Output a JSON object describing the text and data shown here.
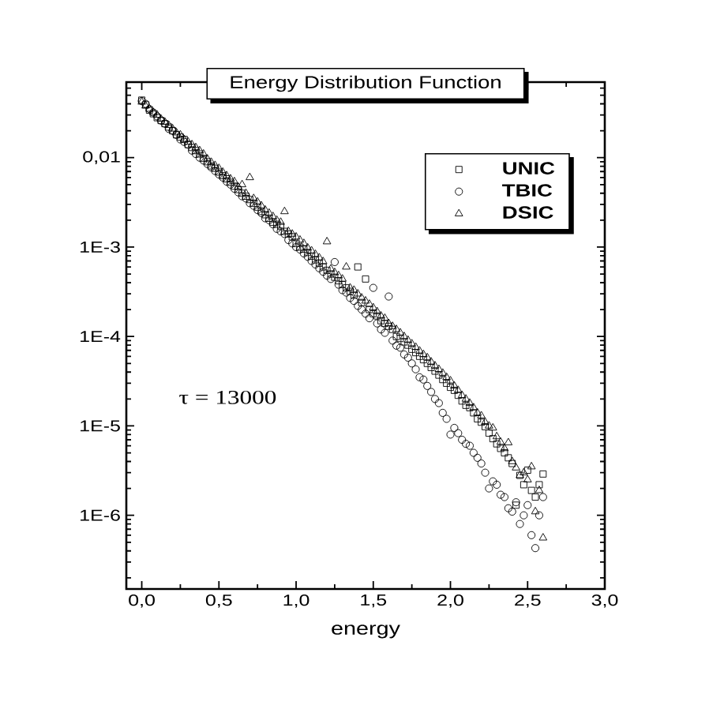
{
  "chart_data": {
    "type": "scatter",
    "title": "Energy Distribution Function",
    "xlabel": "energy",
    "annotations": [
      "τ = 13000"
    ],
    "log": "y",
    "legend": "top right",
    "xlim": [
      -0.1,
      3.0
    ],
    "ylim": [
      1.5e-07,
      0.07
    ],
    "xticks": [
      {
        "value": 0,
        "label": "0,0"
      },
      {
        "value": 0.5,
        "label": "0,5"
      },
      {
        "value": 1,
        "label": "1,0"
      },
      {
        "value": 1.5,
        "label": "1,5"
      },
      {
        "value": 2,
        "label": "2,0"
      },
      {
        "value": 2.5,
        "label": "2,5"
      },
      {
        "value": 3,
        "label": "3,0"
      }
    ],
    "yticks": [
      {
        "value": 1e-06,
        "label": "1E-6"
      },
      {
        "value": 1e-05,
        "label": "1E-5"
      },
      {
        "value": 0.0001,
        "label": "1E-4"
      },
      {
        "value": 0.001,
        "label": "1E-3"
      },
      {
        "value": 0.01,
        "label": "0,01"
      }
    ],
    "x": [
      0,
      0.025,
      0.05,
      0.075,
      0.1,
      0.125,
      0.15,
      0.175,
      0.2,
      0.225,
      0.25,
      0.275,
      0.3,
      0.325,
      0.35,
      0.375,
      0.4,
      0.425,
      0.45,
      0.475,
      0.5,
      0.525,
      0.55,
      0.575,
      0.6,
      0.625,
      0.65,
      0.675,
      0.7,
      0.725,
      0.75,
      0.775,
      0.8,
      0.825,
      0.85,
      0.875,
      0.9,
      0.925,
      0.95,
      0.975,
      1.0,
      1.025,
      1.05,
      1.075,
      1.1,
      1.125,
      1.15,
      1.175,
      1.2,
      1.225,
      1.25,
      1.275,
      1.3,
      1.325,
      1.35,
      1.375,
      1.4,
      1.425,
      1.45,
      1.475,
      1.5,
      1.525,
      1.55,
      1.575,
      1.6,
      1.625,
      1.65,
      1.675,
      1.7,
      1.725,
      1.75,
      1.775,
      1.8,
      1.825,
      1.85,
      1.875,
      1.9,
      1.925,
      1.95,
      1.975,
      2.0,
      2.025,
      2.05,
      2.075,
      2.1,
      2.125,
      2.15,
      2.175,
      2.2,
      2.225,
      2.25,
      2.275,
      2.3,
      2.325,
      2.35,
      2.375,
      2.4,
      2.425,
      2.45,
      2.475,
      2.5,
      2.525,
      2.55,
      2.575,
      2.6
    ],
    "series": [
      {
        "name": "UNIC",
        "color": "#000000",
        "marker": "square",
        "values": [
          0.044,
          0.039,
          0.034,
          0.031,
          0.028,
          0.026,
          0.024,
          0.022,
          0.02,
          0.018,
          0.017,
          0.016,
          0.014,
          0.013,
          0.012,
          0.011,
          0.0098,
          0.009,
          0.0081,
          0.0076,
          0.0069,
          0.0063,
          0.0058,
          0.0053,
          0.0048,
          0.0044,
          0.004,
          0.0037,
          0.0034,
          0.0031,
          0.0028,
          0.0025,
          0.0023,
          0.0021,
          0.0019,
          0.0018,
          0.0017,
          0.0015,
          0.0014,
          0.0013,
          0.0011,
          0.001,
          0.00095,
          0.00087,
          0.00079,
          0.00072,
          0.00066,
          0.0006,
          0.00055,
          0.0005,
          0.00046,
          0.00042,
          0.00038,
          0.00035,
          0.00032,
          0.00029,
          0.0006,
          0.00024,
          0.00044,
          0.0002,
          0.00018,
          0.00017,
          0.00015,
          0.00014,
          0.00013,
          0.00012,
          0.0001,
          9.5e-05,
          8.7e-05,
          8e-05,
          7.2e-05,
          6.6e-05,
          6e-05,
          5.5e-05,
          5e-05,
          4.5e-05,
          4.1e-05,
          3.7e-05,
          3.3e-05,
          3e-05,
          2.7e-05,
          2.5e-05,
          2.2e-05,
          1.9e-05,
          1.7e-05,
          1.6e-05,
          1.4e-05,
          1.2e-05,
          1.1e-05,
          9.8e-06,
          8.3e-06,
          7.2e-06,
          6.3e-06,
          5.6e-06,
          5e-06,
          4.4e-06,
          3.8e-06,
          1.3e-06,
          2.8e-06,
          2.2e-06,
          3.2e-06,
          1.9e-06,
          1.6e-06,
          2.2e-06,
          2.9e-06
        ]
      },
      {
        "name": "TBIC",
        "color": "#000000",
        "marker": "circle",
        "values": [
          0.043,
          0.04,
          0.035,
          0.032,
          0.029,
          0.026,
          0.024,
          0.021,
          0.02,
          0.018,
          0.016,
          0.015,
          0.014,
          0.012,
          0.011,
          0.01,
          0.0093,
          0.0085,
          0.0078,
          0.0071,
          0.0065,
          0.006,
          0.0054,
          0.005,
          0.0045,
          0.0041,
          0.0037,
          0.0035,
          0.0031,
          0.0029,
          0.0026,
          0.0024,
          0.0021,
          0.002,
          0.0018,
          0.0016,
          0.0015,
          0.0014,
          0.0012,
          0.0011,
          0.001,
          0.00094,
          0.00085,
          0.00078,
          0.0007,
          0.00064,
          0.00058,
          0.00053,
          0.00048,
          0.00044,
          0.00068,
          0.00038,
          0.00033,
          0.00031,
          0.00027,
          0.00025,
          0.00022,
          0.0002,
          0.00018,
          0.00016,
          0.00035,
          0.00014,
          0.00012,
          0.00011,
          0.00028,
          9e-05,
          7.9e-05,
          7.5e-05,
          6.3e-05,
          5.8e-05,
          5e-05,
          4.3e-05,
          3.5e-05,
          3.3e-05,
          2.8e-05,
          2.4e-05,
          2e-05,
          1.8e-05,
          1.4e-05,
          1.2e-05,
          8e-06,
          9.5e-06,
          8.3e-06,
          7e-06,
          6.3e-06,
          6e-06,
          5e-06,
          4.4e-06,
          3.8e-06,
          3e-06,
          2e-06,
          2.4e-06,
          2.2e-06,
          1.7e-06,
          1.6e-06,
          1.2e-06,
          1.1e-06,
          1.4e-06,
          8e-07,
          1e-06,
          1.3e-06,
          6e-07,
          4.3e-07,
          1e-06,
          1.6e-06
        ]
      },
      {
        "name": "DSIC",
        "color": "#000000",
        "marker": "triangle",
        "values": [
          0.042,
          0.038,
          0.035,
          0.032,
          0.03,
          0.027,
          0.025,
          0.023,
          0.021,
          0.019,
          0.018,
          0.016,
          0.015,
          0.014,
          0.013,
          0.012,
          0.011,
          0.0097,
          0.0089,
          0.0082,
          0.0076,
          0.0069,
          0.0063,
          0.0058,
          0.0054,
          0.0047,
          0.005,
          0.004,
          0.006,
          0.0035,
          0.0032,
          0.0029,
          0.0026,
          0.0024,
          0.0022,
          0.002,
          0.0019,
          0.0025,
          0.0015,
          0.0014,
          0.0013,
          0.0012,
          0.0011,
          0.00098,
          0.00091,
          0.00083,
          0.00076,
          0.00069,
          0.00115,
          0.00057,
          0.00052,
          0.00048,
          0.00044,
          0.0006,
          0.00035,
          0.00033,
          0.0003,
          0.00027,
          0.00025,
          0.00023,
          0.00021,
          0.00019,
          0.00017,
          0.00016,
          0.00014,
          0.00013,
          0.00012,
          0.00011,
          0.0001,
          9.1e-05,
          8.3e-05,
          7.6e-05,
          6.9e-05,
          6.3e-05,
          5.8e-05,
          5.2e-05,
          4.7e-05,
          4.3e-05,
          3.9e-05,
          3.5e-05,
          3.2e-05,
          2.8e-05,
          2.5e-05,
          2.2e-05,
          2e-05,
          1.8e-05,
          1.6e-05,
          1.4e-05,
          1.3e-05,
          1.1e-05,
          1e-05,
          9.5e-06,
          7.6e-06,
          6.6e-06,
          5.6e-06,
          6.5e-06,
          4e-06,
          3.4e-06,
          2.8e-06,
          3e-06,
          2.5e-06,
          3.5e-06,
          1.1e-06,
          1.9e-06,
          5.6e-07
        ]
      }
    ]
  }
}
